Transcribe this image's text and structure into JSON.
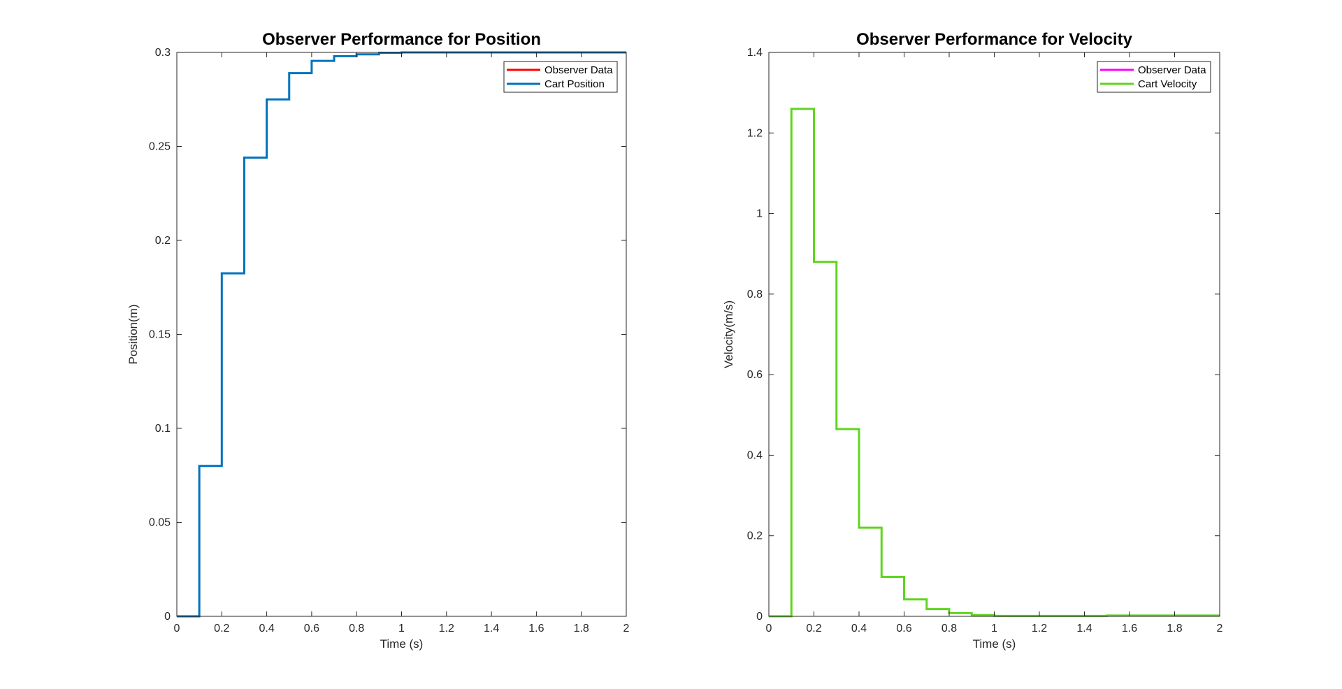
{
  "chart_data": [
    {
      "type": "line",
      "step": true,
      "title": "Observer Performance for Position",
      "xlabel": "Time (s)",
      "ylabel": "Position(m)",
      "xlim": [
        0,
        2
      ],
      "ylim": [
        0,
        0.3
      ],
      "xticks": [
        "0",
        "0.2",
        "0.4",
        "0.6",
        "0.8",
        "1",
        "1.2",
        "1.4",
        "1.6",
        "1.8",
        "2"
      ],
      "yticks": [
        "0",
        "0.05",
        "0.1",
        "0.15",
        "0.2",
        "0.25",
        "0.3"
      ],
      "grid": false,
      "legend_location": "top-right",
      "series": [
        {
          "name": "Observer Data",
          "color": "#ff0000",
          "x": [],
          "values": []
        },
        {
          "name": "Cart Position",
          "color": "#0072bd",
          "x": [
            0,
            0.1,
            0.2,
            0.3,
            0.4,
            0.5,
            0.6,
            0.7,
            0.8,
            0.9,
            1.0,
            2.0
          ],
          "values": [
            0,
            0.08,
            0.1825,
            0.244,
            0.275,
            0.289,
            0.2955,
            0.298,
            0.299,
            0.2998,
            0.3,
            0.3
          ]
        }
      ]
    },
    {
      "type": "line",
      "step": true,
      "title": "Observer Performance for Velocity",
      "xlabel": "Time (s)",
      "ylabel": "Velocity(m/s)",
      "xlim": [
        0,
        2
      ],
      "ylim": [
        0,
        1.4
      ],
      "xticks": [
        "0",
        "0.2",
        "0.4",
        "0.6",
        "0.8",
        "1",
        "1.2",
        "1.4",
        "1.6",
        "1.8",
        "2"
      ],
      "yticks": [
        "0",
        "0.2",
        "0.4",
        "0.6",
        "0.8",
        "1",
        "1.2",
        "1.4"
      ],
      "grid": false,
      "legend_location": "top-right",
      "series": [
        {
          "name": "Observer Data",
          "color": "#ff00ff",
          "x": [],
          "values": []
        },
        {
          "name": "Cart Velocity",
          "color": "#5fd51f",
          "x": [
            0,
            0.1,
            0.2,
            0.3,
            0.4,
            0.5,
            0.6,
            0.7,
            0.8,
            0.9,
            1.0,
            1.5,
            2.0
          ],
          "values": [
            0,
            1.26,
            0.88,
            0.465,
            0.22,
            0.098,
            0.042,
            0.018,
            0.008,
            0.003,
            0.001,
            0.002,
            0.002
          ]
        }
      ]
    }
  ]
}
